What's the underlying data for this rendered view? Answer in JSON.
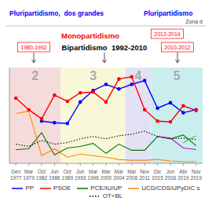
{
  "chart_data": {
    "type": "line",
    "categories": [
      "Gen\n1977",
      "Mar\n1979",
      "Oct\n1982",
      "Jun\n1986",
      "Oct\n1989",
      "Jun\n1993",
      "Mar\n1996",
      "Mar\n2000",
      "Mar\n2004",
      "Mar\n2008",
      "Nov\n2011",
      "Dic\n2015",
      "Jun\n2016",
      "Abr\n2019",
      "Nov\n2019"
    ],
    "series": [
      {
        "name": "PP",
        "color": "#0000ff",
        "marker": "o",
        "values": [
          null,
          null,
          5.5,
          5.3,
          5.2,
          8.0,
          9.5,
          10.3,
          9.7,
          10.3,
          10.8,
          7.2,
          7.9,
          6.6,
          7.0
        ]
      },
      {
        "name": "PSOE",
        "color": "#ff0000",
        "marker": "o",
        "values": [
          8.5,
          7.0,
          5.8,
          8.9,
          8.1,
          9.2,
          9.3,
          8.0,
          11.0,
          11.3,
          7.0,
          5.5,
          5.4,
          7.5,
          6.9
        ]
      },
      {
        "name": "PCE/IU/UP",
        "color": "#007700",
        "values": [
          1.8,
          1.9,
          4.0,
          1.1,
          2.0,
          2.2,
          2.6,
          1.3,
          2.5,
          1.7,
          1.7,
          3.5,
          3.2,
          3.7,
          2.3
        ]
      },
      {
        "name": "UCD/CDS/UPyDIC´s",
        "color": "#ff8800",
        "values": [
          6.5,
          6.8,
          1.0,
          1.9,
          0.8,
          1.2,
          1.0,
          0.8,
          0.5,
          0.4,
          0.4,
          0.5,
          0.3,
          0.2,
          0.2
        ]
      },
      {
        "name": "OT+BL",
        "color": "#000000",
        "line_style": "dotted",
        "values": [
          2.5,
          2.2,
          3.0,
          2.5,
          2.7,
          3.2,
          3.5,
          3.2,
          3.6,
          3.8,
          4.2,
          3.5,
          3.2,
          3.3,
          3.1
        ]
      },
      {
        "color": "#cc00cc",
        "values": [
          null,
          null,
          null,
          null,
          null,
          null,
          null,
          null,
          null,
          null,
          null,
          3.5,
          3.3,
          2.0,
          1.8
        ]
      },
      {
        "color": "#44bb00",
        "values": [
          null,
          null,
          null,
          null,
          null,
          null,
          null,
          null,
          null,
          null,
          null,
          null,
          null,
          2.7,
          3.6
        ]
      }
    ],
    "ylim": [
      0,
      12.5
    ],
    "tick_labels": "x",
    "zones": [
      {
        "label": "2",
        "first": "Gen\n1977",
        "last": "Jun\n1986",
        "color": "#f2d0d0"
      },
      {
        "label": "3",
        "first": "Oct\n1989",
        "last": "Mar\n2004",
        "color": "#f5f5cc"
      },
      {
        "label": "4",
        "first": "Mar\n2008",
        "last": "Nov\n2011",
        "color": "#d8d8f0"
      },
      {
        "label": "5",
        "first": "Dic\n2015",
        "last": "Nov\n2019",
        "color": "#b8e8e8"
      }
    ],
    "annotations": [
      "Pluripartidismo,  dos grandes",
      "Pluripartidismo",
      "Zona d",
      "Monopartidismo",
      "2012-2014",
      "Bipartidismo  1992-2010",
      "1980-1992",
      "2010-2012"
    ]
  }
}
